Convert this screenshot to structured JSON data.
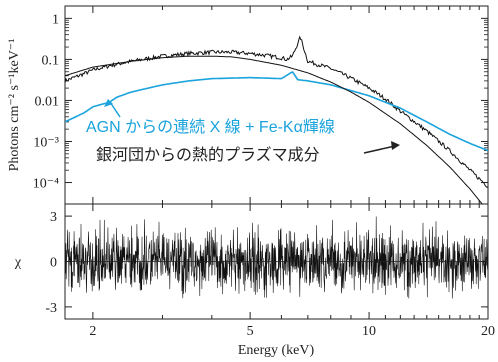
{
  "chart_data": [
    {
      "type": "line",
      "panel": "spectrum",
      "xscale": "log",
      "yscale": "log",
      "xlim": [
        1.7,
        20
      ],
      "ylim": [
        3e-05,
        2
      ],
      "ylabel": "Photons cm⁻² s⁻¹keV⁻¹",
      "ytick_labels": [
        "1",
        "0.1",
        "0.01",
        "10⁻³",
        "10⁻⁴"
      ],
      "ytick_values": [
        1,
        0.1,
        0.01,
        0.001,
        0.0001
      ],
      "annotations": {
        "agn": "AGN からの連続 X 線 + Fe-Kα輝線",
        "cluster": "銀河団からの熱的プラズマ成分"
      },
      "series": [
        {
          "role": "observed spectrum + total model",
          "color": "#111111",
          "x": [
            1.7,
            1.9,
            2.0,
            2.2,
            2.5,
            3.0,
            3.5,
            4.0,
            4.5,
            5.0,
            5.5,
            6.0,
            6.2,
            6.4,
            6.7,
            7.0,
            8.0,
            9.0,
            10.0,
            11.0,
            12.0,
            14.0,
            16.0,
            18.0,
            20.0
          ],
          "y": [
            0.03,
            0.045,
            0.055,
            0.07,
            0.09,
            0.12,
            0.14,
            0.15,
            0.15,
            0.14,
            0.125,
            0.11,
            0.1,
            0.12,
            0.35,
            0.09,
            0.06,
            0.035,
            0.02,
            0.011,
            0.0055,
            0.0018,
            0.0006,
            0.0002,
            8e-05
          ]
        },
        {
          "role": "AGN continuum + Fe-Kα line",
          "color": "#1aa3dc",
          "x": [
            1.7,
            1.9,
            2.0,
            2.1,
            2.2,
            2.3,
            2.5,
            3.0,
            3.5,
            4.0,
            5.0,
            6.0,
            6.4,
            6.6,
            7.0,
            8.0,
            10.0,
            12.0,
            14.0,
            16.0,
            18.0,
            20.0
          ],
          "y": [
            0.003,
            0.005,
            0.007,
            0.008,
            0.009,
            0.012,
            0.016,
            0.024,
            0.03,
            0.034,
            0.036,
            0.034,
            0.05,
            0.032,
            0.03,
            0.024,
            0.013,
            0.0065,
            0.003,
            0.0015,
            0.0009,
            0.0006
          ]
        },
        {
          "role": "cluster thermal plasma component",
          "color": "#111111",
          "x": [
            1.7,
            2.0,
            2.5,
            3.0,
            3.5,
            4.0,
            4.5,
            5.0,
            6.0,
            7.0,
            8.0,
            9.0,
            10.0,
            12.0,
            14.0,
            16.0,
            18.0,
            20.0
          ],
          "y": [
            0.04,
            0.065,
            0.09,
            0.11,
            0.12,
            0.12,
            0.115,
            0.1,
            0.072,
            0.047,
            0.028,
            0.016,
            0.009,
            0.0027,
            0.0008,
            0.00024,
            7e-05,
            2e-05
          ]
        }
      ]
    },
    {
      "type": "line",
      "panel": "residuals",
      "xscale": "log",
      "xlim": [
        1.7,
        20
      ],
      "ylim": [
        -3.8,
        3.8
      ],
      "xlabel": "Energy (keV)",
      "ylabel": "χ",
      "xtick_labels": [
        "2",
        "5",
        "10",
        "20"
      ],
      "xtick_values": [
        2,
        5,
        10,
        20
      ],
      "ytick_labels": [
        "3",
        "0",
        "-3"
      ],
      "ytick_values": [
        3,
        0,
        -3
      ],
      "residual_amplitude": 1.0,
      "line_color": "#111111"
    }
  ]
}
